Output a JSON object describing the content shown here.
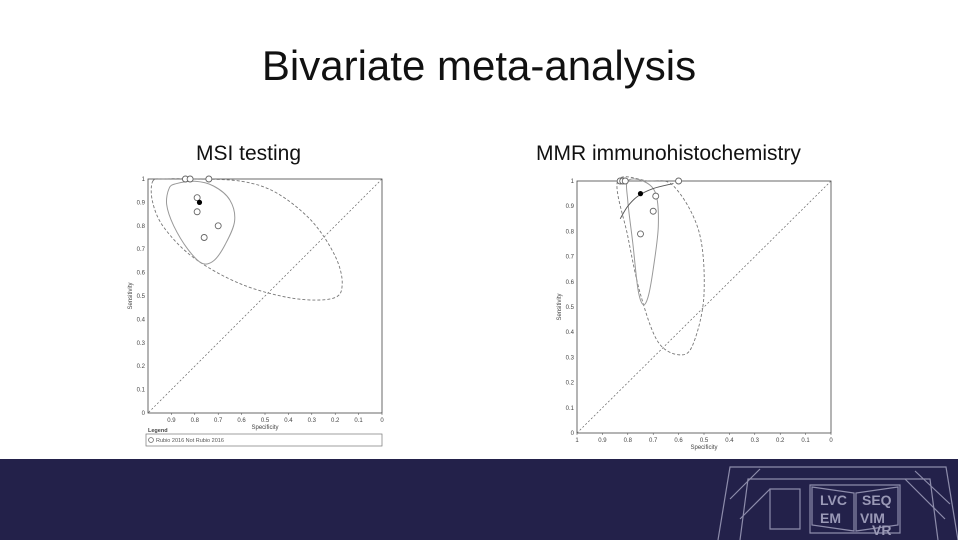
{
  "title": "Bivariate meta-analysis",
  "chart_data": [
    {
      "type": "scatter",
      "subtitle": "MSI testing",
      "xlabel": "Specificity",
      "ylabel": "Sensitivity",
      "x_reversed": true,
      "xlim": [
        1,
        0
      ],
      "ylim": [
        0,
        1
      ],
      "x_ticks": [
        "0.9",
        "0.8",
        "0.7",
        "0.6",
        "0.5",
        "0.4",
        "0.3",
        "0.2",
        "0.1",
        "0"
      ],
      "y_ticks": [
        "0",
        "0.1",
        "0.2",
        "0.3",
        "0.4",
        "0.5",
        "0.6",
        "0.7",
        "0.8",
        "0.9",
        "1"
      ],
      "study_points": [
        {
          "specificity": 0.84,
          "sensitivity": 1.0
        },
        {
          "specificity": 0.82,
          "sensitivity": 1.0
        },
        {
          "specificity": 0.74,
          "sensitivity": 1.0
        },
        {
          "specificity": 0.79,
          "sensitivity": 0.92
        },
        {
          "specificity": 0.79,
          "sensitivity": 0.86
        },
        {
          "specificity": 0.7,
          "sensitivity": 0.8
        },
        {
          "specificity": 0.76,
          "sensitivity": 0.75
        }
      ],
      "summary_point": {
        "specificity": 0.78,
        "sensitivity": 0.9
      },
      "confidence_region": [
        [
          0.91,
          0.96
        ],
        [
          0.88,
          0.98
        ],
        [
          0.8,
          0.99
        ],
        [
          0.72,
          0.97
        ],
        [
          0.65,
          0.91
        ],
        [
          0.63,
          0.82
        ],
        [
          0.67,
          0.72
        ],
        [
          0.72,
          0.65
        ],
        [
          0.77,
          0.64
        ],
        [
          0.83,
          0.7
        ],
        [
          0.89,
          0.8
        ],
        [
          0.92,
          0.89
        ]
      ],
      "prediction_region": [
        [
          0.98,
          0.99
        ],
        [
          0.93,
          1.0
        ],
        [
          0.8,
          1.0
        ],
        [
          0.6,
          0.99
        ],
        [
          0.45,
          0.94
        ],
        [
          0.3,
          0.82
        ],
        [
          0.2,
          0.67
        ],
        [
          0.17,
          0.55
        ],
        [
          0.21,
          0.49
        ],
        [
          0.38,
          0.49
        ],
        [
          0.6,
          0.55
        ],
        [
          0.8,
          0.66
        ],
        [
          0.93,
          0.79
        ],
        [
          0.98,
          0.9
        ]
      ],
      "legend_title": "Legend",
      "legend_text": "Rubio 2016  Not Rubio 2016"
    },
    {
      "type": "scatter",
      "subtitle": "MMR immunohistochemistry",
      "xlabel": "Specificity",
      "ylabel": "Sensitivity",
      "x_reversed": true,
      "xlim": [
        1,
        0
      ],
      "ylim": [
        0,
        1
      ],
      "x_ticks": [
        "1",
        "0.9",
        "0.8",
        "0.7",
        "0.6",
        "0.5",
        "0.4",
        "0.3",
        "0.2",
        "0.1",
        "0"
      ],
      "y_ticks": [
        "0",
        "0.1",
        "0.2",
        "0.3",
        "0.4",
        "0.5",
        "0.6",
        "0.7",
        "0.8",
        "0.9",
        "1"
      ],
      "study_points": [
        {
          "specificity": 0.83,
          "sensitivity": 1.0
        },
        {
          "specificity": 0.82,
          "sensitivity": 1.0
        },
        {
          "specificity": 0.81,
          "sensitivity": 1.0
        },
        {
          "specificity": 0.6,
          "sensitivity": 1.0
        },
        {
          "specificity": 0.69,
          "sensitivity": 0.94
        },
        {
          "specificity": 0.7,
          "sensitivity": 0.88
        },
        {
          "specificity": 0.75,
          "sensitivity": 0.79
        }
      ],
      "summary_point": {
        "specificity": 0.75,
        "sensitivity": 0.95
      },
      "sroc_curve": [
        [
          0.83,
          0.85
        ],
        [
          0.8,
          0.9
        ],
        [
          0.76,
          0.94
        ],
        [
          0.7,
          0.97
        ],
        [
          0.62,
          0.99
        ]
      ],
      "confidence_region": [
        [
          0.8,
          1.0
        ],
        [
          0.74,
          1.0
        ],
        [
          0.69,
          0.95
        ],
        [
          0.68,
          0.82
        ],
        [
          0.7,
          0.65
        ],
        [
          0.72,
          0.54
        ],
        [
          0.74,
          0.51
        ],
        [
          0.76,
          0.57
        ],
        [
          0.78,
          0.75
        ],
        [
          0.8,
          0.92
        ]
      ],
      "prediction_region": [
        [
          0.84,
          1.0
        ],
        [
          0.72,
          1.0
        ],
        [
          0.62,
          0.98
        ],
        [
          0.52,
          0.8
        ],
        [
          0.5,
          0.55
        ],
        [
          0.54,
          0.36
        ],
        [
          0.59,
          0.31
        ],
        [
          0.68,
          0.36
        ],
        [
          0.75,
          0.55
        ],
        [
          0.8,
          0.78
        ]
      ]
    }
  ]
}
